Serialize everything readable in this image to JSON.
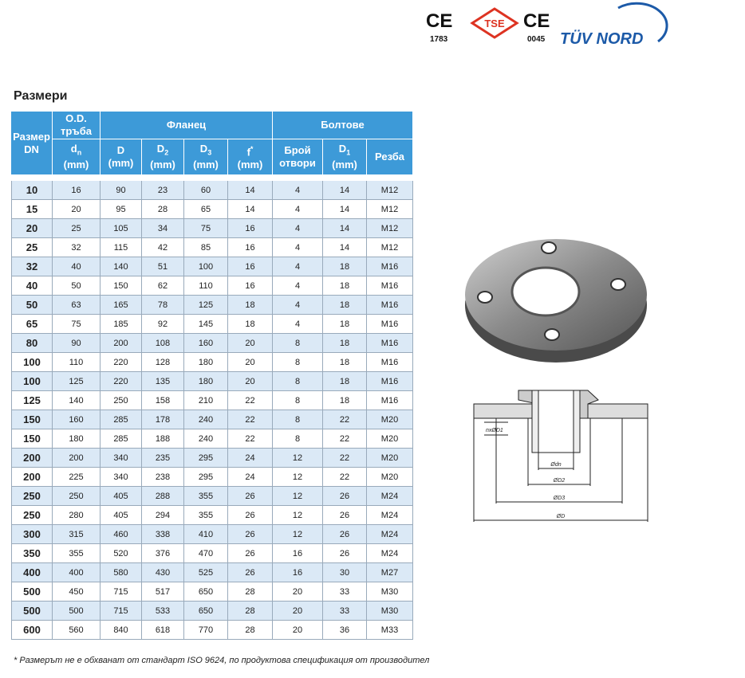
{
  "logos": {
    "ce1": "CE",
    "ce1_number": "1783",
    "tse": "TSE",
    "ce2": "CE",
    "ce2_number": "0045",
    "tuv": "TÜV NORD"
  },
  "title": "Размери",
  "table": {
    "header": {
      "dn": "Размер DN",
      "od": "O.D. тръба",
      "flange": "Фланец",
      "bolts": "Болтове",
      "columns": [
        {
          "symbol": "d",
          "sub": "n",
          "unit": "(mm)"
        },
        {
          "symbol": "D",
          "sub": "",
          "unit": "(mm)"
        },
        {
          "symbol": "D",
          "sub": "2",
          "unit": "(mm)"
        },
        {
          "symbol": "D",
          "sub": "3",
          "unit": "(mm)"
        },
        {
          "symbol": "f",
          "sup": "*",
          "unit": "(mm)"
        },
        {
          "symbol": "Брой",
          "sub": "",
          "unit": "отвори"
        },
        {
          "symbol": "D",
          "sub": "1",
          "unit": "(mm)"
        },
        {
          "symbol": "Резба",
          "sub": "",
          "unit": ""
        }
      ]
    },
    "rows": [
      [
        10,
        16,
        90,
        23,
        60,
        14,
        4,
        14,
        "M12"
      ],
      [
        15,
        20,
        95,
        28,
        65,
        14,
        4,
        14,
        "M12"
      ],
      [
        20,
        25,
        105,
        34,
        75,
        16,
        4,
        14,
        "M12"
      ],
      [
        25,
        32,
        115,
        42,
        85,
        16,
        4,
        14,
        "M12"
      ],
      [
        32,
        40,
        140,
        51,
        100,
        16,
        4,
        18,
        "M16"
      ],
      [
        40,
        50,
        150,
        62,
        110,
        16,
        4,
        18,
        "M16"
      ],
      [
        50,
        63,
        165,
        78,
        125,
        18,
        4,
        18,
        "M16"
      ],
      [
        65,
        75,
        185,
        92,
        145,
        18,
        4,
        18,
        "M16"
      ],
      [
        80,
        90,
        200,
        108,
        160,
        20,
        8,
        18,
        "M16"
      ],
      [
        100,
        110,
        220,
        128,
        180,
        20,
        8,
        18,
        "M16"
      ],
      [
        100,
        125,
        220,
        135,
        180,
        20,
        8,
        18,
        "M16"
      ],
      [
        125,
        140,
        250,
        158,
        210,
        22,
        8,
        18,
        "M16"
      ],
      [
        150,
        160,
        285,
        178,
        240,
        22,
        8,
        22,
        "M20"
      ],
      [
        150,
        180,
        285,
        188,
        240,
        22,
        8,
        22,
        "M20"
      ],
      [
        200,
        200,
        340,
        235,
        295,
        24,
        12,
        22,
        "M20"
      ],
      [
        200,
        225,
        340,
        238,
        295,
        24,
        12,
        22,
        "M20"
      ],
      [
        250,
        250,
        405,
        288,
        355,
        26,
        12,
        26,
        "M24"
      ],
      [
        250,
        280,
        405,
        294,
        355,
        26,
        12,
        26,
        "M24"
      ],
      [
        300,
        315,
        460,
        338,
        410,
        26,
        12,
        26,
        "M24"
      ],
      [
        350,
        355,
        520,
        376,
        470,
        26,
        16,
        26,
        "M24"
      ],
      [
        400,
        400,
        580,
        430,
        525,
        26,
        16,
        30,
        "M27"
      ],
      [
        500,
        450,
        715,
        517,
        650,
        28,
        20,
        33,
        "M30"
      ],
      [
        500,
        500,
        715,
        533,
        650,
        28,
        20,
        33,
        "M30"
      ],
      [
        600,
        560,
        840,
        618,
        770,
        28,
        20,
        36,
        "M33"
      ]
    ]
  },
  "diagram": {
    "holes": "nxØD1",
    "dn": "Ødn",
    "d2": "ØD2",
    "d3": "ØD3",
    "d": "ØD"
  },
  "footnote": "* Размерът не е обхванат от стандарт ISO 9624, по продуктова спецификация от производител"
}
